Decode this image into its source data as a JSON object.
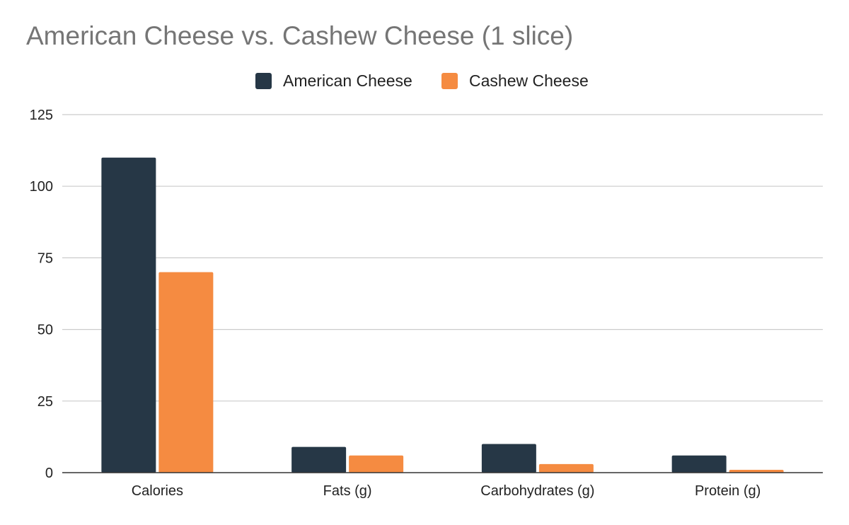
{
  "chart_data": {
    "type": "bar",
    "title": "American Cheese vs. Cashew Cheese (1 slice)",
    "categories": [
      "Calories",
      "Fats (g)",
      "Carbohydrates (g)",
      "Protein (g)"
    ],
    "series": [
      {
        "name": "American Cheese",
        "values": [
          110,
          9,
          10,
          6
        ],
        "color": "#263746"
      },
      {
        "name": "Cashew Cheese",
        "values": [
          70,
          6,
          3,
          1
        ],
        "color": "#f58b41"
      }
    ],
    "xlabel": "",
    "ylabel": "",
    "ylim": [
      0,
      125
    ],
    "yticks": [
      "0",
      "25",
      "50",
      "75",
      "100",
      "125"
    ],
    "grid": true,
    "legend_position": "top-center",
    "colors": {
      "title": "#757575",
      "text": "#222222",
      "gridline": "#cccccc",
      "axis": "#333333"
    }
  }
}
